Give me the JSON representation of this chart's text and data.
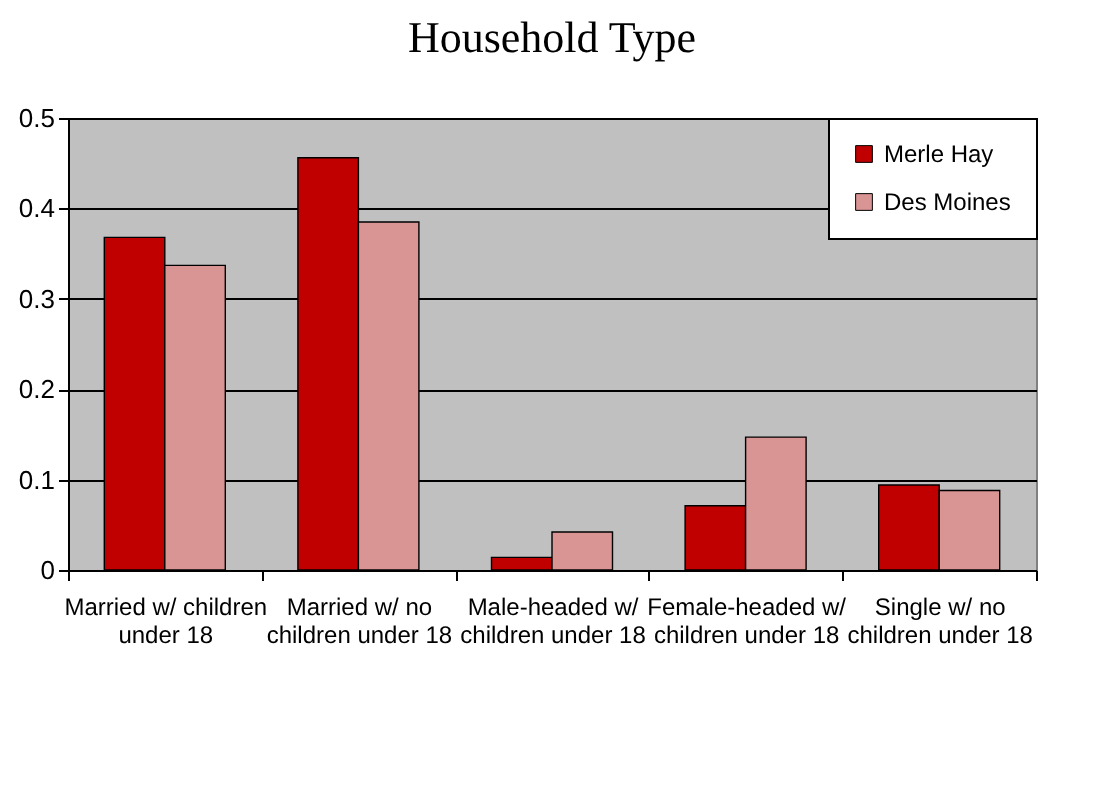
{
  "chart_data": {
    "type": "bar",
    "title": "Household Type",
    "categories": [
      "Married w/ children under 18",
      "Married w/ no children under 18",
      "Male-headed w/ children under 18",
      "Female-headed w/ children under 18",
      "Single w/ no children under 18"
    ],
    "series": [
      {
        "name": "Merle Hay",
        "color": "#c00000",
        "values": [
          0.368,
          0.456,
          0.014,
          0.071,
          0.094
        ]
      },
      {
        "name": "Des Moines",
        "color": "#d99594",
        "values": [
          0.337,
          0.385,
          0.042,
          0.147,
          0.088
        ]
      }
    ],
    "ylim": [
      0,
      0.5
    ],
    "yticks": [
      0,
      0.1,
      0.2,
      0.3,
      0.4,
      0.5
    ],
    "grid": "y",
    "legend": "top right"
  }
}
